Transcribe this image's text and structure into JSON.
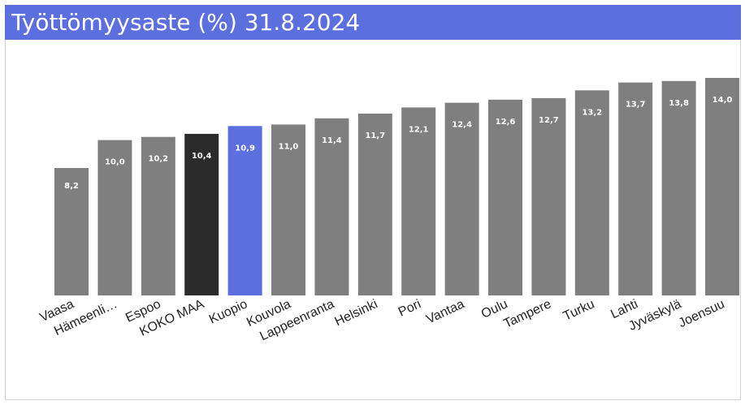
{
  "chart_data": {
    "type": "bar",
    "title": "Työttömyysaste (%) 31.8.2024",
    "categories": [
      "Vaasa",
      "Hämeenli…",
      "Espoo",
      "KOKO MAA",
      "Kuopio",
      "Kouvola",
      "Lappeenranta",
      "Helsinki",
      "Pori",
      "Vantaa",
      "Oulu",
      "Tampere",
      "Turku",
      "Lahti",
      "Jyväskylä",
      "Joensuu"
    ],
    "values": [
      8.2,
      10.0,
      10.2,
      10.4,
      10.9,
      11.0,
      11.4,
      11.7,
      12.1,
      12.4,
      12.6,
      12.7,
      13.2,
      13.7,
      13.8,
      14.0
    ],
    "value_labels": [
      "8,2",
      "10,0",
      "10,2",
      "10,4",
      "10,9",
      "11,0",
      "11,4",
      "11,7",
      "12,1",
      "12,4",
      "12,6",
      "12,7",
      "13,2",
      "13,7",
      "13,8",
      "14,0"
    ],
    "ylim": [
      0,
      14.0
    ],
    "grid": false,
    "legend": "none",
    "colors": {
      "default": "#7f7f7f",
      "koko_maa": "#2b2b2b",
      "highlight": "#5b6fdf",
      "header": "#5b6fdf"
    },
    "highlight_index": 4,
    "national_index": 3
  }
}
